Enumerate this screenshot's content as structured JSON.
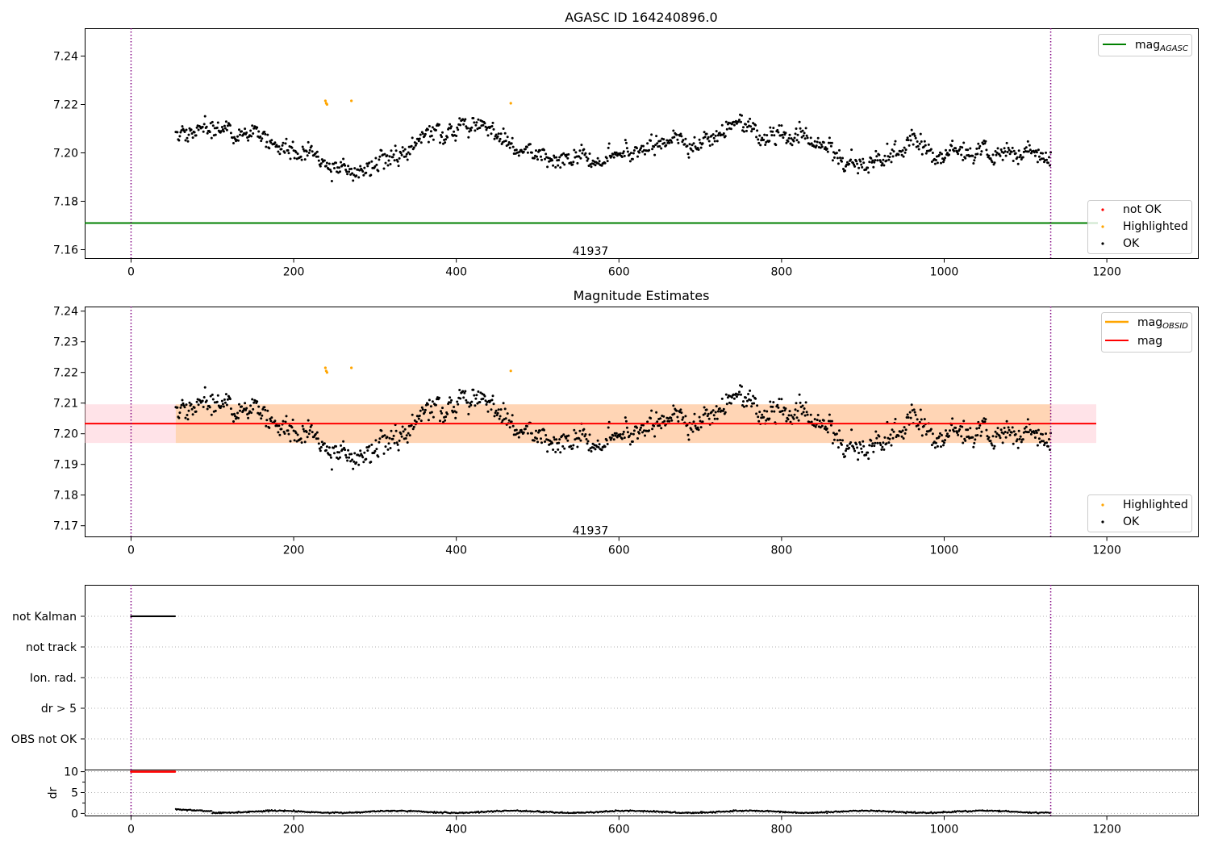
{
  "chart_data": [
    {
      "type": "scatter",
      "title": "AGASC ID 164240896.0",
      "xlim": [
        -57,
        1312
      ],
      "ylim": [
        7.1565,
        7.2515
      ],
      "xticks": [
        0,
        200,
        400,
        600,
        800,
        1000,
        1200
      ],
      "xtick_labels": [
        "0",
        "200",
        "400",
        "600",
        "800",
        "1000",
        "1200"
      ],
      "yticks": [
        7.16,
        7.18,
        7.2,
        7.22,
        7.24
      ],
      "ytick_labels": [
        "7.16",
        "7.18",
        "7.20",
        "7.22",
        "7.24"
      ],
      "vlines": [
        0,
        1131
      ],
      "vline_color": "#800080",
      "mag_agasc": 7.171,
      "mag_agasc_color": "#008000",
      "annotation": {
        "text": "41937",
        "x": 565,
        "y": 7.1595
      },
      "legend_lines": [
        {
          "label": "mag",
          "subscript": "AGASC",
          "color": "#008000"
        }
      ],
      "legend_points": [
        {
          "label": "not OK",
          "color": "#ff0000"
        },
        {
          "label": "Highlighted",
          "color": "#ffa500"
        },
        {
          "label": "OK",
          "color": "#000000"
        }
      ],
      "series_ok": {
        "name": "OK",
        "x_range": [
          55,
          1131
        ],
        "n_points": 1077,
        "mean": 7.2033,
        "spread": 0.0065
      },
      "highlighted_points": [
        {
          "x": 239,
          "y": 7.2215
        },
        {
          "x": 240,
          "y": 7.2205
        },
        {
          "x": 241,
          "y": 7.22
        },
        {
          "x": 271,
          "y": 7.2215
        },
        {
          "x": 467,
          "y": 7.2205
        }
      ]
    },
    {
      "type": "scatter",
      "title": "Magnitude Estimates",
      "xlim": [
        -57,
        1312
      ],
      "ylim": [
        7.1665,
        7.2415
      ],
      "xticks": [
        0,
        200,
        400,
        600,
        800,
        1000,
        1200
      ],
      "xtick_labels": [
        "0",
        "200",
        "400",
        "600",
        "800",
        "1000",
        "1200"
      ],
      "yticks": [
        7.17,
        7.18,
        7.19,
        7.2,
        7.21,
        7.22,
        7.23,
        7.24
      ],
      "ytick_labels": [
        "7.17",
        "7.18",
        "7.19",
        "7.20",
        "7.21",
        "7.22",
        "7.23",
        "7.24"
      ],
      "vlines": [
        0,
        1131
      ],
      "mag": 7.2033,
      "mag_color": "#ff0000",
      "mag_band": [
        7.197,
        7.2096
      ],
      "mag_band_x": [
        -57,
        1187
      ],
      "mag_obsid_band_x": [
        55,
        1131
      ],
      "annotation": {
        "text": "41937",
        "x": 565,
        "y": 7.1685
      },
      "legend_lines": [
        {
          "label": "mag",
          "subscript": "OBSID",
          "color": "#ffa500"
        },
        {
          "label": "mag",
          "subscript": "",
          "color": "#ff0000"
        }
      ],
      "legend_points": [
        {
          "label": "Highlighted",
          "color": "#ffa500"
        },
        {
          "label": "OK",
          "color": "#000000"
        }
      ]
    },
    {
      "type": "scatter",
      "title": "",
      "categories": [
        "not Kalman",
        "not track",
        "Ion. rad.",
        "dr > 5",
        "OBS not OK"
      ],
      "flag_ranges": [
        {
          "category": "not Kalman",
          "x_range": [
            0,
            54
          ]
        }
      ],
      "xlim": [
        -57,
        1312
      ]
    },
    {
      "type": "scatter",
      "ylabel": "dr",
      "xlim": [
        -57,
        1312
      ],
      "ylim": [
        -0.5,
        10.5
      ],
      "yticks": [
        0,
        5,
        10
      ],
      "ytick_labels": [
        "0",
        "5",
        "10"
      ],
      "xticks": [
        0,
        200,
        400,
        600,
        800,
        1000,
        1200
      ],
      "xtick_labels": [
        "0",
        "200",
        "400",
        "600",
        "800",
        "1000",
        "1200"
      ],
      "clipped_points": {
        "x_range": [
          0,
          54
        ],
        "y": 10,
        "color": "#ff0000"
      },
      "series": {
        "x_range": [
          55,
          1131
        ],
        "mean": 0.4,
        "max": 1.2
      }
    }
  ]
}
